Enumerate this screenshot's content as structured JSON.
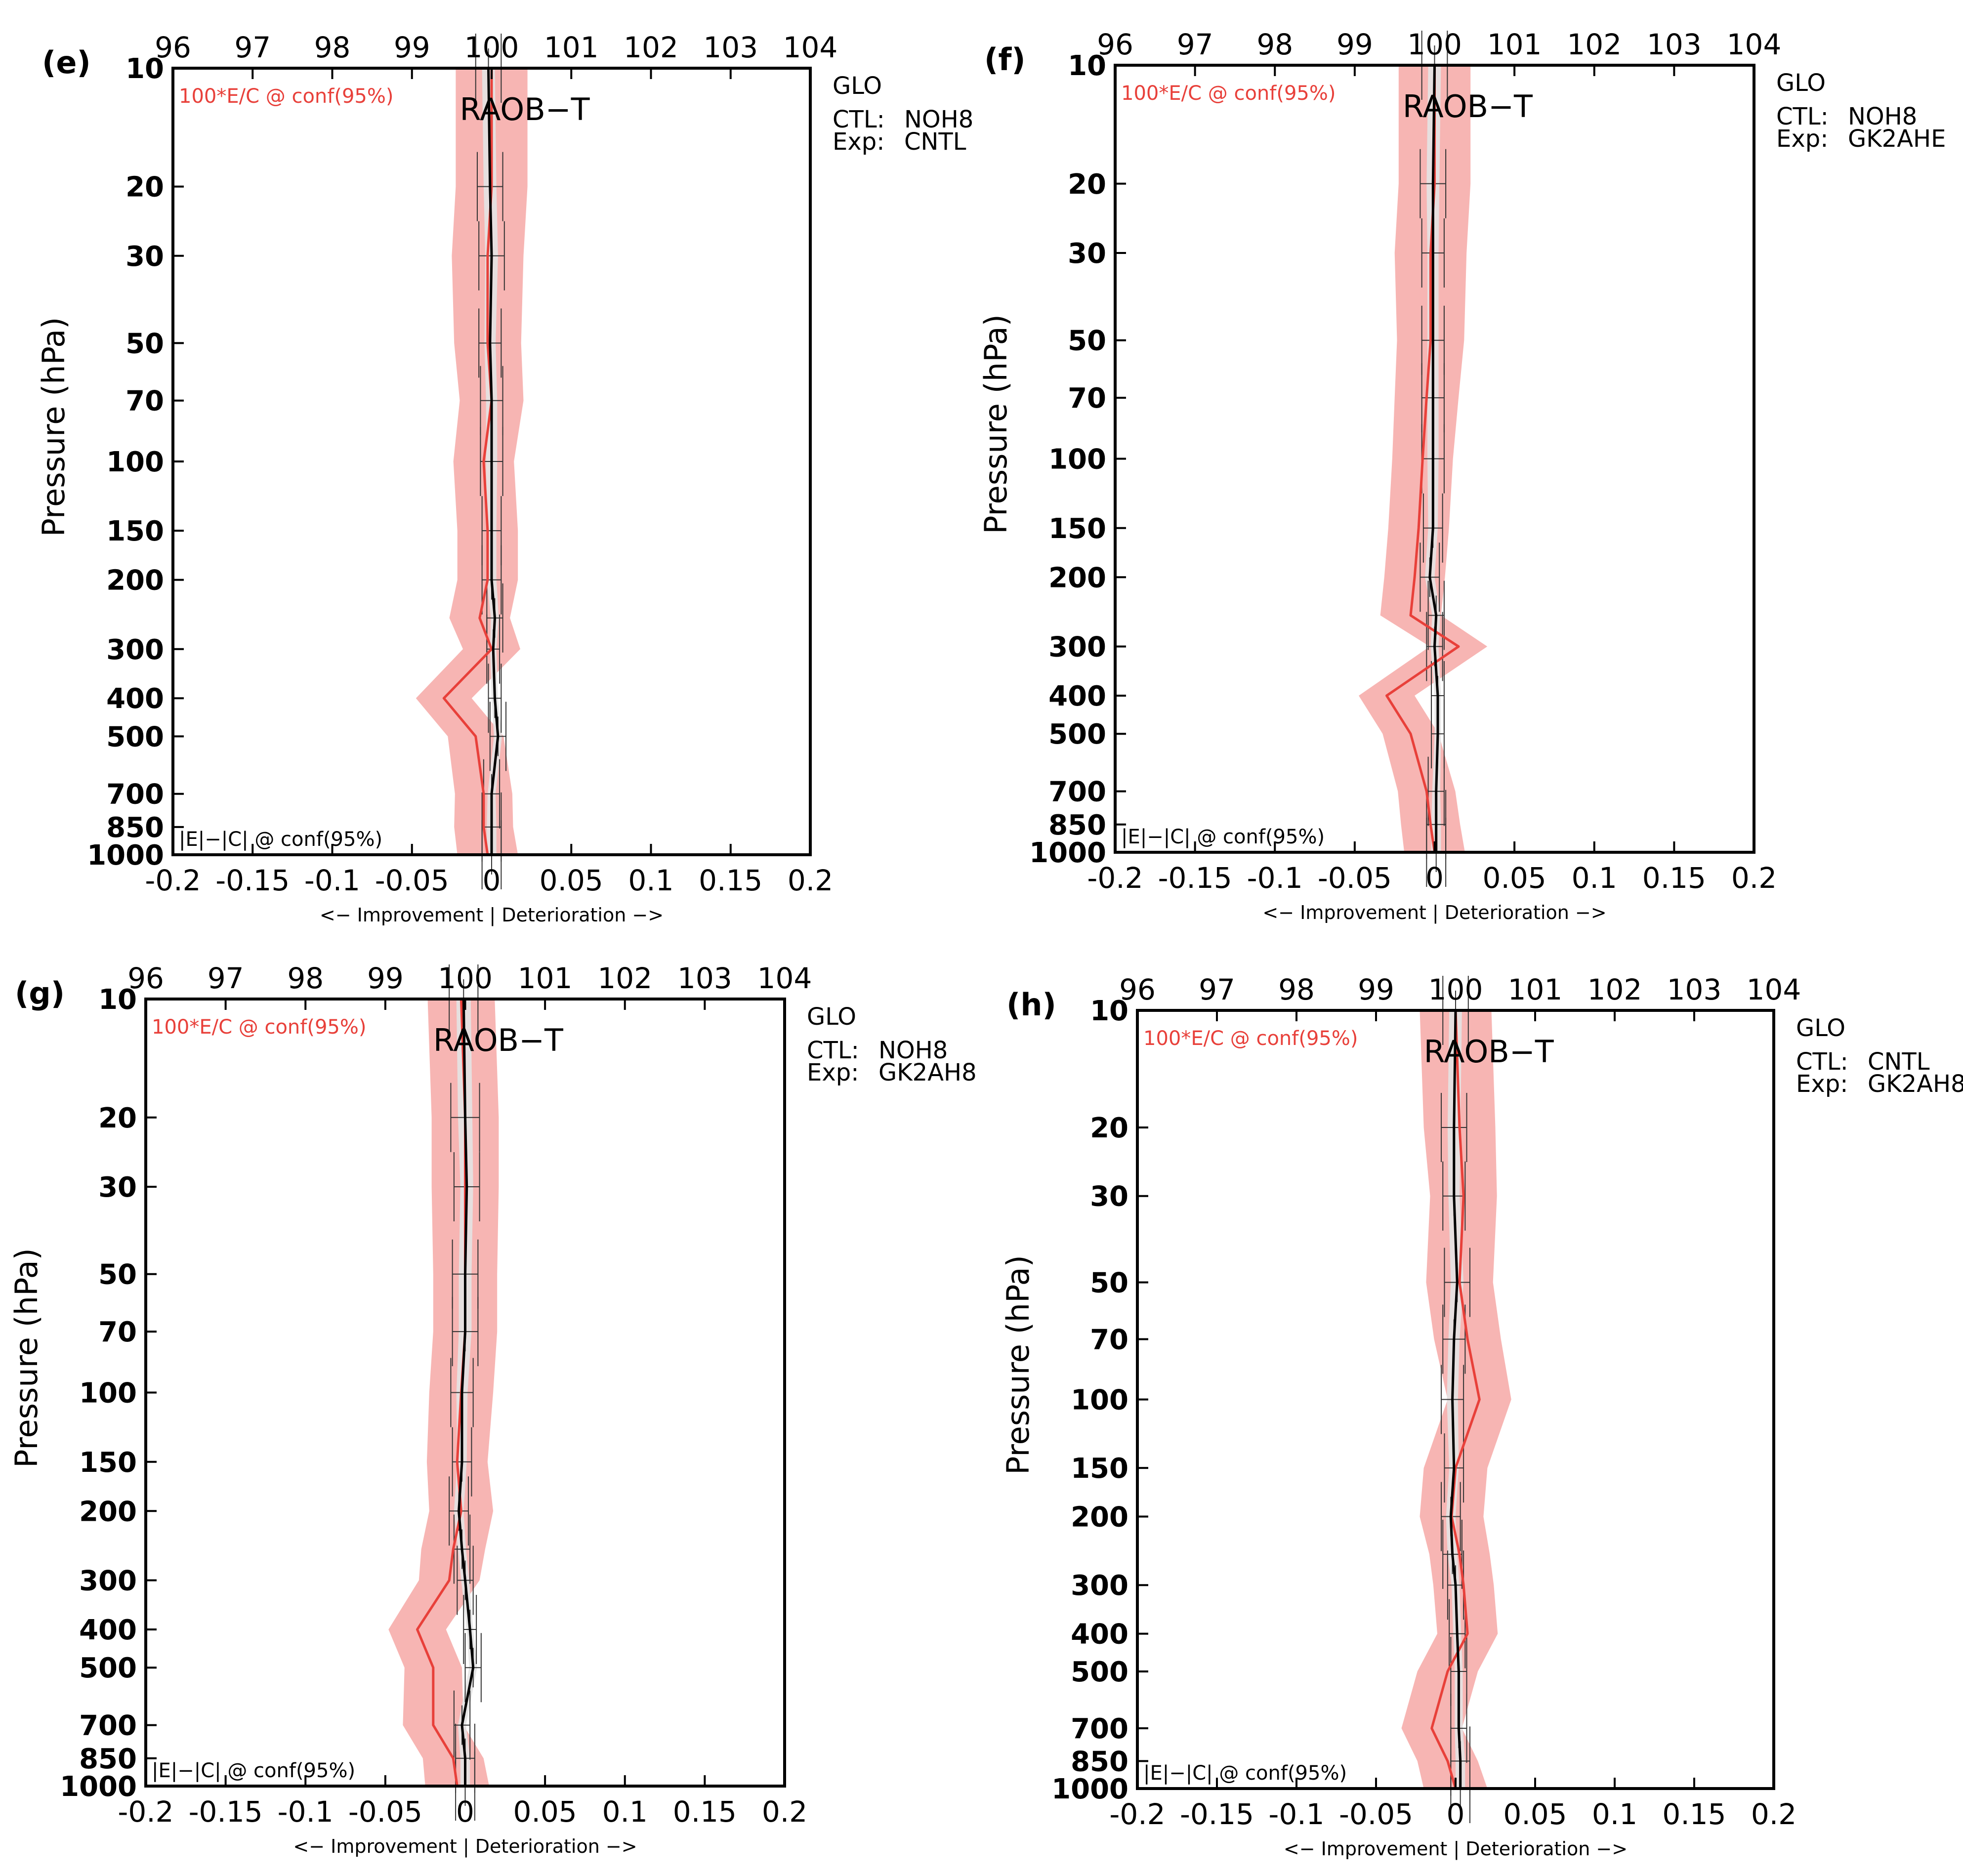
{
  "figure": {
    "shared": {
      "bottom_axis_ticks": [
        "-0.2",
        "-0.15",
        "-0.1",
        "-0.05",
        "0",
        "0.05",
        "0.1",
        "0.15",
        "0.2"
      ],
      "top_axis_ticks": [
        "96",
        "97",
        "98",
        "99",
        "100",
        "101",
        "102",
        "103",
        "104"
      ],
      "pressure_ticks": [
        "10",
        "20",
        "30",
        "50",
        "70",
        "100",
        "150",
        "200",
        "300",
        "400",
        "500",
        "700",
        "850",
        "1000"
      ],
      "ylabel": "Pressure (hPa)",
      "xlabel": "<− Improvement | Deterioration −>",
      "red_legend": "100*E/C @ conf(95%)",
      "black_legend": "|E|−|C| @ conf(95%)",
      "title": "RAOB−T",
      "region": "GLO"
    }
  },
  "chart_data": [
    {
      "type": "line",
      "panel_label": "(e)",
      "title": "RAOB−T",
      "region": "GLO",
      "ctl_label": "CTL:",
      "ctl_value": "NOH8",
      "exp_label": "Exp:",
      "exp_value": "CNTL",
      "xlim": [
        -0.2,
        0.2
      ],
      "top_xlim": [
        96,
        104
      ],
      "ylim": [
        1000,
        10
      ],
      "yscale": "log",
      "pressure": [
        10,
        20,
        30,
        50,
        70,
        100,
        150,
        200,
        250,
        300,
        400,
        500,
        700,
        850,
        1000
      ],
      "series": [
        {
          "name": "|E|−|C| @ conf(95%)",
          "color": "#000000",
          "diff": [
            -0.002,
            -0.001,
            0.0,
            -0.001,
            0.0,
            0.0,
            0.0,
            0.0,
            0.002,
            0.001,
            0.002,
            0.004,
            0.0,
            0.0,
            0.0
          ],
          "ci": [
            0.008,
            0.008,
            0.008,
            0.007,
            0.007,
            0.007,
            0.006,
            0.006,
            0.005,
            0.004,
            0.004,
            0.005,
            0.005,
            0.006,
            0.006
          ]
        },
        {
          "name": "100*E/C @ conf(95%)",
          "color": "#e8403a",
          "ratio": [
            100.0,
            100.0,
            99.95,
            99.95,
            100.0,
            99.9,
            99.95,
            99.95,
            99.85,
            100.0,
            99.4,
            99.8,
            99.9,
            99.9,
            99.95
          ],
          "ci": [
            0.45,
            0.45,
            0.45,
            0.42,
            0.4,
            0.38,
            0.38,
            0.38,
            0.38,
            0.36,
            0.35,
            0.35,
            0.36,
            0.37,
            0.38
          ]
        }
      ]
    },
    {
      "type": "line",
      "panel_label": "(f)",
      "title": "RAOB−T",
      "region": "GLO",
      "ctl_label": "CTL:",
      "ctl_value": "NOH8",
      "exp_label": "Exp:",
      "exp_value": "GK2AHE",
      "xlim": [
        -0.2,
        0.2
      ],
      "top_xlim": [
        96,
        104
      ],
      "ylim": [
        1000,
        10
      ],
      "yscale": "log",
      "pressure": [
        10,
        20,
        30,
        50,
        70,
        100,
        150,
        200,
        250,
        300,
        400,
        500,
        700,
        850,
        1000
      ],
      "series": [
        {
          "name": "|E|−|C| @ conf(95%)",
          "color": "#000000",
          "diff": [
            0.0,
            -0.001,
            -0.001,
            -0.001,
            -0.001,
            -0.001,
            -0.001,
            -0.003,
            0.001,
            0.0,
            0.002,
            0.002,
            0.001,
            0.001,
            0.001
          ],
          "ci": [
            0.008,
            0.008,
            0.007,
            0.007,
            0.007,
            0.007,
            0.006,
            0.006,
            0.005,
            0.005,
            0.004,
            0.004,
            0.005,
            0.006,
            0.006
          ]
        },
        {
          "name": "100*E/C @ conf(95%)",
          "color": "#e8403a",
          "ratio": [
            100.0,
            100.0,
            99.95,
            99.95,
            99.9,
            99.85,
            99.8,
            99.75,
            99.7,
            100.3,
            99.4,
            99.7,
            99.9,
            99.95,
            100.0
          ],
          "ci": [
            0.45,
            0.45,
            0.45,
            0.42,
            0.4,
            0.38,
            0.38,
            0.38,
            0.38,
            0.36,
            0.35,
            0.35,
            0.36,
            0.37,
            0.38
          ]
        }
      ]
    },
    {
      "type": "line",
      "panel_label": "(g)",
      "title": "RAOB−T",
      "region": "GLO",
      "ctl_label": "CTL:",
      "ctl_value": "NOH8",
      "exp_label": "Exp:",
      "exp_value": "GK2AH8",
      "xlim": [
        -0.2,
        0.2
      ],
      "top_xlim": [
        96,
        104
      ],
      "ylim": [
        1000,
        10
      ],
      "yscale": "log",
      "pressure": [
        10,
        20,
        30,
        50,
        70,
        100,
        150,
        200,
        250,
        300,
        400,
        500,
        700,
        850,
        1000
      ],
      "series": [
        {
          "name": "|E|−|C| @ conf(95%)",
          "color": "#000000",
          "diff": [
            -0.001,
            0.0,
            0.001,
            0.0,
            0.0,
            -0.002,
            -0.002,
            -0.004,
            -0.002,
            0.0,
            0.003,
            0.005,
            -0.002,
            0.0,
            0.0
          ],
          "ci": [
            0.009,
            0.009,
            0.008,
            0.008,
            0.008,
            0.007,
            0.006,
            0.006,
            0.005,
            0.005,
            0.004,
            0.005,
            0.005,
            0.006,
            0.006
          ]
        },
        {
          "name": "100*E/C @ conf(95%)",
          "color": "#e8403a",
          "ratio": [
            99.95,
            100.0,
            100.0,
            100.0,
            100.0,
            99.95,
            99.9,
            99.95,
            99.85,
            99.8,
            99.4,
            99.6,
            99.6,
            99.85,
            99.9
          ],
          "ci": [
            0.42,
            0.42,
            0.42,
            0.4,
            0.4,
            0.4,
            0.38,
            0.4,
            0.4,
            0.38,
            0.36,
            0.36,
            0.38,
            0.38,
            0.4
          ]
        }
      ]
    },
    {
      "type": "line",
      "panel_label": "(h)",
      "title": "RAOB−T",
      "region": "GLO",
      "ctl_label": "CTL:",
      "ctl_value": "CNTL",
      "exp_label": "Exp:",
      "exp_value": "GK2AH8",
      "xlim": [
        -0.2,
        0.2
      ],
      "top_xlim": [
        96,
        104
      ],
      "ylim": [
        1000,
        10
      ],
      "yscale": "log",
      "pressure": [
        10,
        20,
        30,
        50,
        70,
        100,
        150,
        200,
        250,
        300,
        400,
        500,
        700,
        850,
        1000
      ],
      "series": [
        {
          "name": "|E|−|C| @ conf(95%)",
          "color": "#000000",
          "diff": [
            0.0,
            -0.001,
            -0.001,
            0.001,
            -0.001,
            -0.002,
            -0.001,
            -0.003,
            -0.002,
            0.0,
            0.001,
            0.002,
            0.002,
            0.003,
            0.003
          ],
          "ci": [
            0.008,
            0.008,
            0.007,
            0.008,
            0.007,
            0.007,
            0.006,
            0.006,
            0.006,
            0.005,
            0.005,
            0.005,
            0.005,
            0.006,
            0.006
          ]
        },
        {
          "name": "100*E/C @ conf(95%)",
          "color": "#e8403a",
          "ratio": [
            100.0,
            100.05,
            100.1,
            100.05,
            100.15,
            100.3,
            100.0,
            99.95,
            100.05,
            100.1,
            100.15,
            99.9,
            99.7,
            99.9,
            100.0
          ],
          "ci": [
            0.45,
            0.45,
            0.42,
            0.42,
            0.42,
            0.4,
            0.4,
            0.4,
            0.38,
            0.38,
            0.38,
            0.38,
            0.38,
            0.38,
            0.4
          ]
        }
      ]
    }
  ]
}
